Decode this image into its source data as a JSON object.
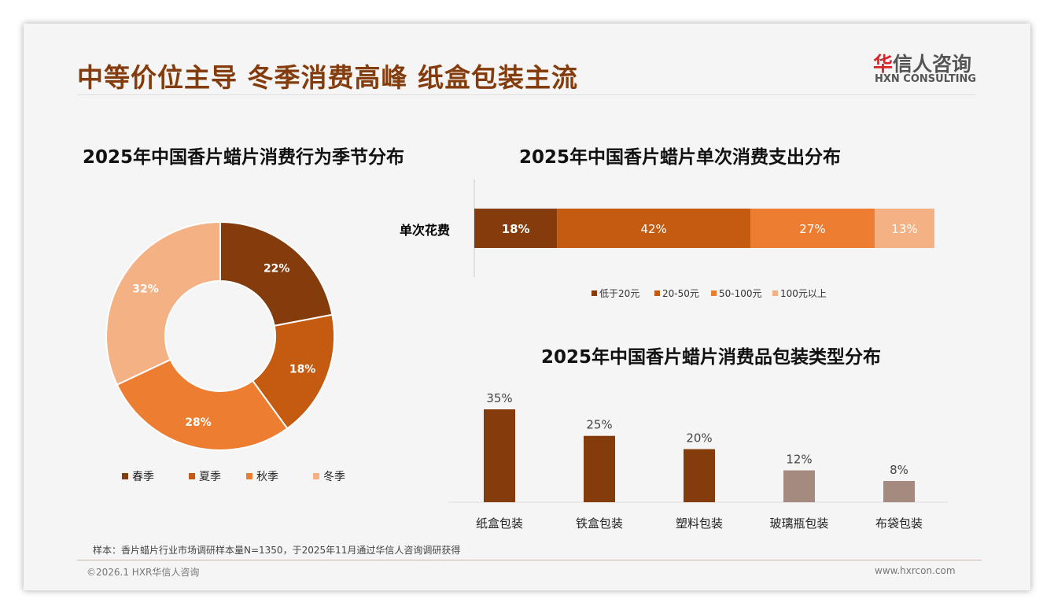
{
  "header": {
    "title": "中等价位主导 冬季消费高峰 纸盒包装主流",
    "logo_cn_red": "华",
    "logo_cn": "信人咨询",
    "logo_en": "HXN CONSULTING"
  },
  "footer": {
    "note": "样本：香片蜡片行业市场调研样本量N=1350，于2025年11月通过华信人咨询调研获得",
    "copyright": "©2026.1 HXR华信人咨询",
    "url": "www.hxrcon.com"
  },
  "chart_data": [
    {
      "type": "pie",
      "title": "2025年中国香片蜡片消费行为季节分布",
      "categories": [
        "春季",
        "夏季",
        "秋季",
        "冬季"
      ],
      "values": [
        22,
        18,
        28,
        32
      ],
      "labels": [
        "22%",
        "18%",
        "28%",
        "32%"
      ],
      "colors": [
        "#843C0C",
        "#C55A11",
        "#ED7D31",
        "#F4B183"
      ],
      "legend": "bottom"
    },
    {
      "type": "bar",
      "stacked": true,
      "orientation": "horizontal",
      "title": "2025年中国香片蜡片单次消费支出分布",
      "categories": [
        "单次花费"
      ],
      "series": [
        {
          "name": "低于20元",
          "values": [
            18
          ],
          "label": "18%"
        },
        {
          "name": "20-50元",
          "values": [
            42
          ],
          "label": "42%"
        },
        {
          "name": "50-100元",
          "values": [
            27
          ],
          "label": "27%"
        },
        {
          "name": "100元以上",
          "values": [
            13
          ],
          "label": "13%"
        }
      ],
      "colors": [
        "#843C0C",
        "#C55A11",
        "#ED7D31",
        "#F4B183"
      ],
      "legend": "bottom"
    },
    {
      "type": "bar",
      "title": "2025年中国香片蜡片消费品包装类型分布",
      "categories": [
        "纸盒包装",
        "铁盒包装",
        "塑料包装",
        "玻璃瓶包装",
        "布袋包装"
      ],
      "values": [
        35,
        25,
        20,
        12,
        8
      ],
      "labels": [
        "35%",
        "25%",
        "20%",
        "12%",
        "8%"
      ],
      "colors": [
        "#843C0C",
        "#843C0C",
        "#843C0C",
        "#A58A80",
        "#A58A80"
      ],
      "ylim": [
        0,
        35
      ]
    }
  ]
}
